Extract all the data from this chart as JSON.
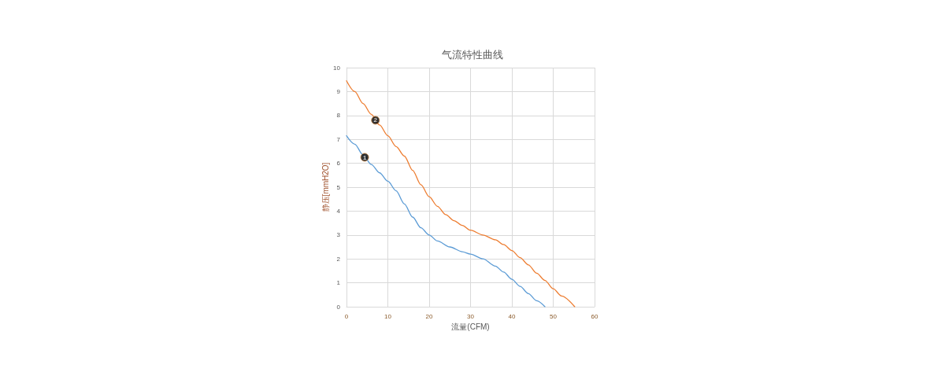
{
  "chart_data": {
    "type": "line",
    "title": "气流特性曲线",
    "xlabel": "流量(CFM)",
    "ylabel": "静压[mmH2O]",
    "xlim": [
      0,
      60
    ],
    "xticks": [
      0,
      10,
      20,
      30,
      40,
      50,
      60
    ],
    "ylim": [
      0,
      10
    ],
    "yticks": [
      0,
      1,
      2,
      3,
      4,
      5,
      6,
      7,
      8,
      9,
      10
    ],
    "grid": true,
    "marker": "none",
    "line_style": "solid",
    "series": [
      {
        "color": "#5b9bd5",
        "x": [
          0,
          2,
          4,
          6,
          8,
          10,
          12,
          14,
          16,
          18,
          20,
          22,
          25,
          28,
          30,
          33,
          36,
          38,
          40,
          42,
          44,
          46,
          48
        ],
        "values": [
          7.15,
          6.8,
          6.35,
          5.95,
          5.6,
          5.25,
          4.85,
          4.3,
          3.75,
          3.3,
          3.0,
          2.75,
          2.5,
          2.3,
          2.2,
          2.0,
          1.7,
          1.45,
          1.15,
          0.85,
          0.55,
          0.25,
          0
        ]
      },
      {
        "color": "#ed7d31",
        "x": [
          0,
          2,
          4,
          6,
          8,
          10,
          12,
          14,
          16,
          18,
          20,
          22,
          24,
          26,
          28,
          30,
          33,
          36,
          38,
          40,
          42,
          44,
          46,
          48,
          50,
          52,
          55.2
        ],
        "values": [
          9.45,
          9.0,
          8.5,
          8.05,
          7.6,
          7.15,
          6.7,
          6.3,
          5.7,
          5.1,
          4.6,
          4.2,
          3.85,
          3.6,
          3.4,
          3.2,
          3.0,
          2.8,
          2.6,
          2.35,
          2.05,
          1.75,
          1.4,
          1.1,
          0.75,
          0.45,
          0
        ]
      }
    ],
    "annotations": [
      {
        "text": "1",
        "x": 4.4,
        "y": 6.25
      },
      {
        "text": "2",
        "x": 7,
        "y": 7.8
      }
    ]
  }
}
